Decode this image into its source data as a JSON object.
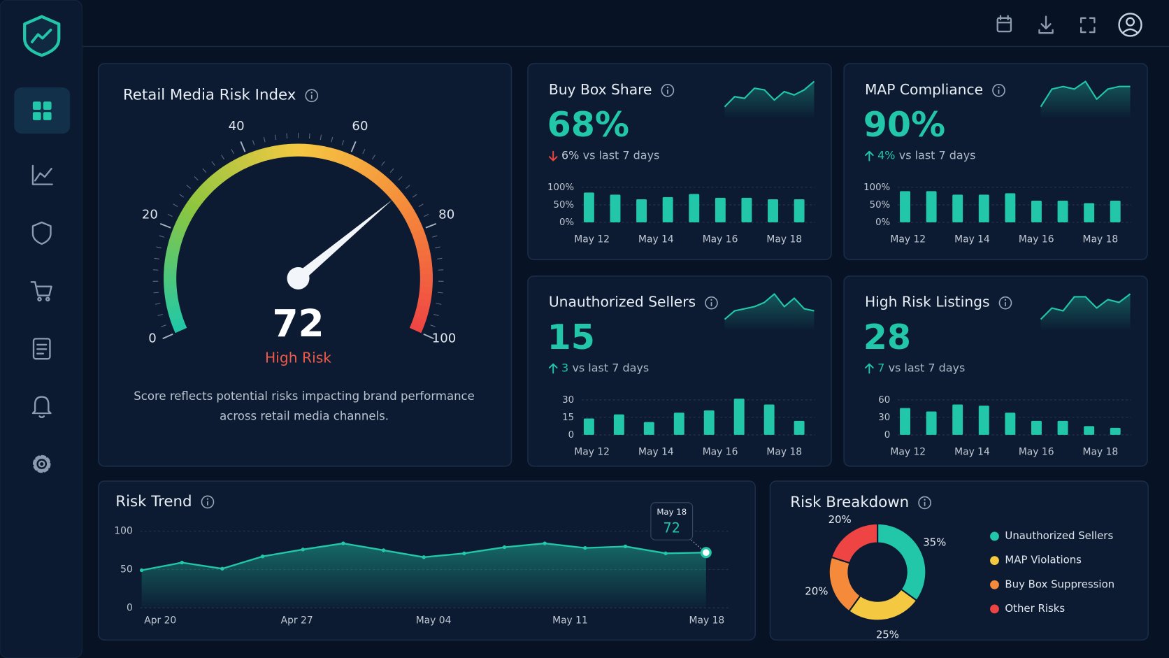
{
  "chart_data": [
    {
      "type": "gauge",
      "title": "Retail Media Risk Index",
      "value": 72,
      "status": "High Risk",
      "status_color": "#ef5a4a",
      "xlim": [
        0,
        100
      ],
      "ticks": [
        0,
        20,
        40,
        60,
        80,
        100
      ],
      "colors": [
        "#1fc8a9",
        "#8cc63f",
        "#f5c842",
        "#f58a3a",
        "#ef4444"
      ],
      "description": "Score reflects potential risks impacting brand performance across retail media channels."
    },
    {
      "type": "kpi_bar",
      "title": "Buy Box Share",
      "kpi": "68%",
      "change": "6%",
      "change_direction": "down",
      "change_text": "vs last 7 days",
      "values": [
        85,
        79,
        66,
        72,
        81,
        70,
        70,
        66,
        66
      ],
      "ylim": [
        0,
        100
      ],
      "yticks": [
        {
          "value": 0,
          "label": "0%"
        },
        {
          "value": 50,
          "label": "50%"
        },
        {
          "value": 100,
          "label": "100%"
        }
      ],
      "x_labels": [
        "May 12",
        "May 14",
        "May 16",
        "May 18"
      ],
      "sparkline": [
        7,
        19,
        17,
        29,
        27,
        15,
        25,
        21,
        27,
        37
      ],
      "color": "#22c7a9"
    },
    {
      "type": "kpi_bar",
      "title": "MAP Compliance",
      "kpi": "90%",
      "change": "4%",
      "change_direction": "up",
      "change_text": "vs last 7 days",
      "values": [
        89,
        89,
        79,
        79,
        83,
        62,
        62,
        55,
        62
      ],
      "ylim": [
        0,
        100
      ],
      "yticks": [
        {
          "value": 0,
          "label": "0%"
        },
        {
          "value": 50,
          "label": "50%"
        },
        {
          "value": 100,
          "label": "100%"
        }
      ],
      "x_labels": [
        "May 12",
        "May 14",
        "May 16",
        "May 18"
      ],
      "sparkline": [
        15,
        29,
        31,
        29,
        35,
        21,
        29,
        31,
        31
      ],
      "color": "#22c7a9"
    },
    {
      "type": "kpi_bar",
      "title": "Unauthorized Sellers",
      "kpi": 15,
      "change": 3,
      "change_direction": "up",
      "change_text": "vs last 7 days",
      "values": [
        14,
        17.5,
        11,
        19,
        21,
        31,
        26,
        12
      ],
      "ylim": [
        0,
        30
      ],
      "yticks": [
        0,
        15,
        30
      ],
      "x_labels": [
        "May 12",
        "May 14",
        "May 16",
        "May 18"
      ],
      "sparkline": [
        15,
        23,
        25,
        27,
        31,
        39,
        27,
        35,
        25,
        23
      ],
      "color": "#22c7a9"
    },
    {
      "type": "kpi_bar",
      "title": "High Risk Listings",
      "kpi": 28,
      "change": 7,
      "change_direction": "up",
      "change_text": "vs last 7 days",
      "values": [
        46,
        40,
        52,
        50,
        38,
        24,
        24,
        15,
        12
      ],
      "ylim": [
        0,
        60
      ],
      "yticks": [
        0,
        30,
        60
      ],
      "x_labels": [
        "May 12",
        "May 14",
        "May 16",
        "May 18"
      ],
      "sparkline": [
        13,
        21,
        19,
        29,
        29,
        21,
        27,
        25,
        31
      ],
      "color": "#22c7a9"
    },
    {
      "type": "line",
      "title": "Risk Trend",
      "values": [
        49,
        59,
        51,
        67,
        76,
        84,
        75,
        66,
        71,
        79,
        84,
        78,
        80,
        71,
        72
      ],
      "x_labels": [
        "Apr 20",
        "Apr 27",
        "May 04",
        "May 11",
        "May 18"
      ],
      "ylim": [
        0,
        100
      ],
      "yticks": [
        0,
        50,
        100
      ],
      "color": "#22c7a9"
    },
    {
      "type": "pie",
      "title": "Risk Breakdown",
      "categories": [
        "Unauthorized Sellers",
        "MAP Violations",
        "Buy Box Suppression",
        "Other Risks"
      ],
      "values": [
        35,
        25,
        20,
        20
      ],
      "value_labels": [
        "35%",
        "25%",
        "20%",
        "20%"
      ],
      "colors": [
        "#22c7a9",
        "#f5c842",
        "#f58a3a",
        "#ef4444"
      ]
    }
  ]
}
